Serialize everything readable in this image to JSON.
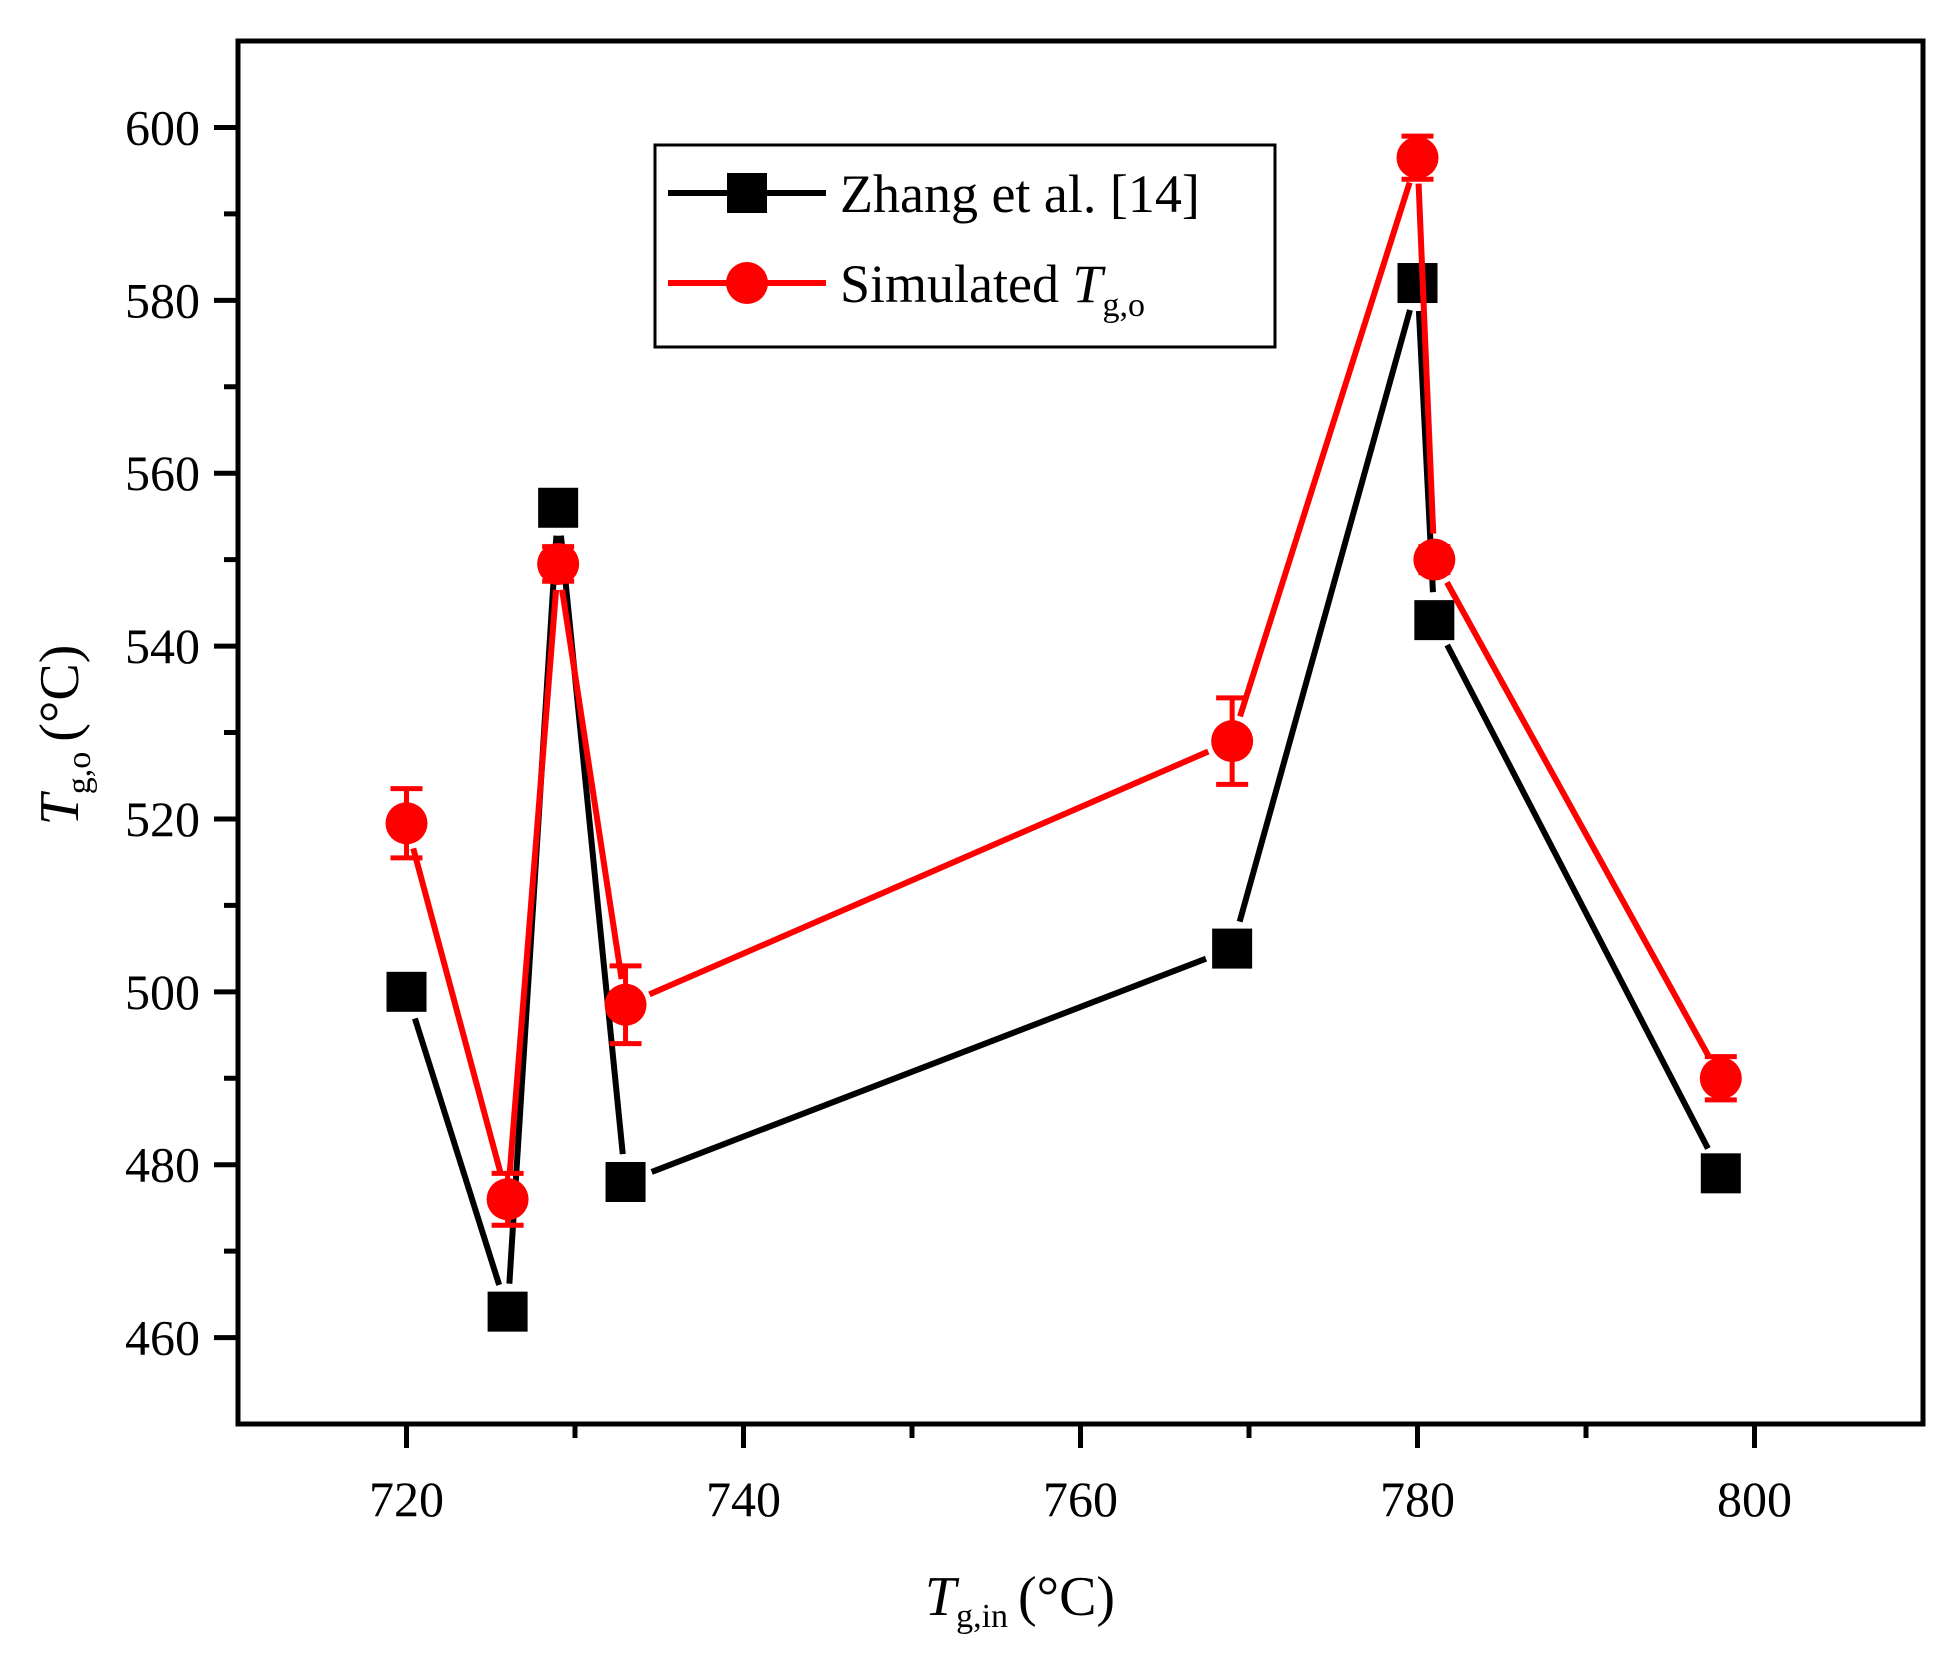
{
  "chart_data": {
    "type": "line",
    "title": "",
    "xlabel": {
      "main": "T",
      "sub": "g,in",
      "unit": "(°C)"
    },
    "ylabel": {
      "main": "T",
      "sub": "g,o",
      "unit": "(°C)"
    },
    "xlim": [
      710,
      810
    ],
    "ylim": [
      450,
      610
    ],
    "xticks": [
      720,
      740,
      760,
      780,
      800
    ],
    "yticks": [
      460,
      480,
      500,
      520,
      540,
      560,
      580,
      600
    ],
    "grid": false,
    "legend_position": "top-center",
    "series": [
      {
        "name": "Zhang et al. [14]",
        "legend_label": "Zhang et al. [14]",
        "color": "#000000",
        "marker": "square",
        "x": [
          720,
          726,
          729,
          733,
          769,
          780,
          781,
          798
        ],
        "y": [
          500,
          463,
          556,
          478,
          505,
          582,
          543,
          479
        ]
      },
      {
        "name": "Simulated Tg,o",
        "legend_label": {
          "main": "Simulated ",
          "italic": "T",
          "sub": "g,o"
        },
        "color": "#ff0000",
        "marker": "circle",
        "x": [
          720,
          726,
          729,
          733,
          769,
          780,
          781,
          798
        ],
        "y": [
          519.5,
          476,
          549.5,
          498.5,
          529,
          596.5,
          550,
          490
        ],
        "error": [
          4,
          3,
          2,
          4.5,
          5,
          2.5,
          1.5,
          2.5
        ]
      }
    ]
  }
}
